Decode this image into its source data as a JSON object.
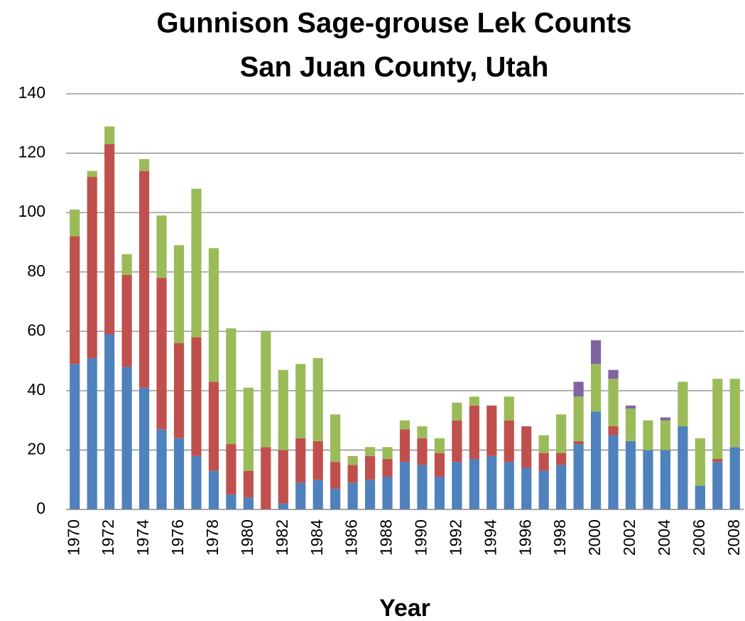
{
  "chart_data": {
    "type": "stacked_bar",
    "title": [
      "Gunnison Sage-grouse Lek Counts",
      "San Juan County, Utah"
    ],
    "x_label": "Year",
    "categories": [
      "1970",
      null,
      "1972",
      null,
      "1974",
      null,
      "1976",
      null,
      "1978",
      null,
      "1980",
      null,
      "1982",
      null,
      "1984",
      null,
      "1986",
      null,
      "1988",
      null,
      "1990",
      null,
      "1992",
      null,
      "1994",
      null,
      "1996",
      null,
      "1998",
      null,
      "2000",
      null,
      "2002",
      null,
      "2004",
      null,
      "2006",
      null,
      "2008"
    ],
    "series": [
      {
        "color": "#4f81bd",
        "values": [
          49,
          51,
          59,
          48,
          41,
          27,
          24,
          18,
          13,
          5,
          4,
          0,
          2,
          9,
          10,
          7,
          9,
          10,
          11,
          16,
          15,
          11,
          16,
          17,
          18,
          16,
          14,
          13,
          15,
          22,
          33,
          25,
          23,
          20,
          20,
          28,
          8,
          16,
          21
        ]
      },
      {
        "color": "#c0504d",
        "values": [
          43,
          61,
          64,
          31,
          73,
          51,
          32,
          40,
          30,
          17,
          9,
          21,
          18,
          15,
          13,
          9,
          6,
          8,
          6,
          11,
          9,
          8,
          14,
          18,
          17,
          14,
          14,
          6,
          4,
          1,
          0,
          3,
          0,
          0,
          0,
          0,
          0,
          1,
          0
        ]
      },
      {
        "color": "#9bbb59",
        "values": [
          9,
          2,
          6,
          7,
          4,
          21,
          33,
          50,
          45,
          39,
          28,
          39,
          27,
          25,
          28,
          16,
          3,
          3,
          4,
          3,
          4,
          5,
          6,
          3,
          0,
          8,
          0,
          6,
          13,
          15,
          16,
          16,
          11,
          10,
          10,
          15,
          16,
          27,
          23
        ]
      },
      {
        "color": "#8064a2",
        "values": [
          0,
          0,
          0,
          0,
          0,
          0,
          0,
          0,
          0,
          0,
          0,
          0,
          0,
          0,
          0,
          0,
          0,
          0,
          0,
          0,
          0,
          0,
          0,
          0,
          0,
          0,
          0,
          0,
          0,
          5,
          8,
          3,
          1,
          0,
          1,
          0,
          0,
          0,
          0
        ]
      }
    ],
    "ylim": [
      0,
      140
    ],
    "yticks": [
      0,
      20,
      40,
      60,
      80,
      100,
      120,
      140
    ],
    "grid": true
  }
}
